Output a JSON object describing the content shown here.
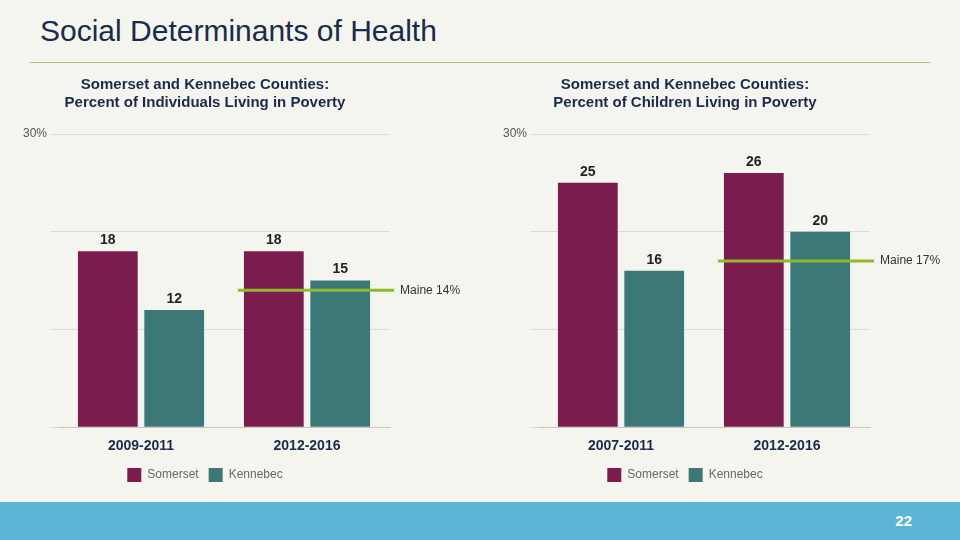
{
  "title": "Social Determinants of Health",
  "annotations": [
    "22"
  ],
  "chart_data": [
    {
      "type": "bar",
      "subtitle": "Somerset and Kennebec Counties:\nPercent of Individuals Living in Poverty",
      "categories": [
        "2009-2011",
        "2012-2016"
      ],
      "series": [
        {
          "name": "Somerset",
          "color": "#7b1c4e",
          "values": [
            18,
            18
          ]
        },
        {
          "name": "Kennebec",
          "color": "#3d7878",
          "values": [
            12,
            15
          ]
        }
      ],
      "annotations": [
        {
          "text": "Maine 14%",
          "y": 14,
          "color": "#8fba2a"
        }
      ],
      "ylim": [
        0,
        30
      ],
      "yticks": [
        {
          "value": 0,
          "label": null
        },
        {
          "value": 10,
          "label": null
        },
        {
          "value": 20,
          "label": null
        },
        {
          "value": 30,
          "label": "30%"
        }
      ],
      "grid": true,
      "legend": "bottom",
      "data_labels": true
    },
    {
      "type": "bar",
      "subtitle": "Somerset and Kennebec Counties:\nPercent of Children Living in Poverty",
      "categories": [
        "2007-2011",
        "2012-2016"
      ],
      "series": [
        {
          "name": "Somerset",
          "color": "#7b1c4e",
          "values": [
            25,
            26
          ]
        },
        {
          "name": "Kennebec",
          "color": "#3d7878",
          "values": [
            16,
            20
          ]
        }
      ],
      "annotations": [
        {
          "text": "Maine 17%",
          "y": 17,
          "color": "#8fba2a"
        }
      ],
      "ylim": [
        0,
        30
      ],
      "yticks": [
        {
          "value": 0,
          "label": null
        },
        {
          "value": 10,
          "label": null
        },
        {
          "value": 20,
          "label": null
        },
        {
          "value": 30,
          "label": "30%"
        }
      ],
      "grid": true,
      "legend": "bottom",
      "data_labels": true
    }
  ]
}
